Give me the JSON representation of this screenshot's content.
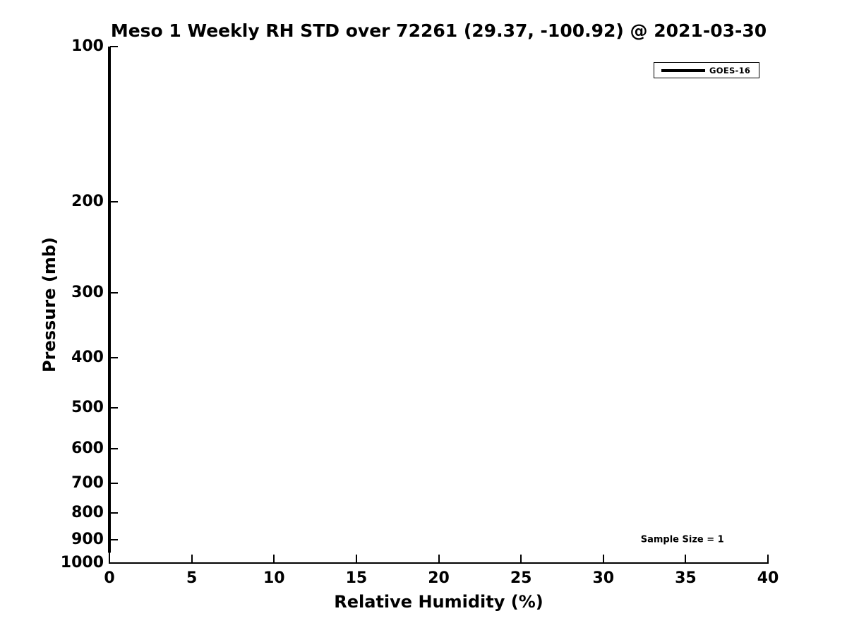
{
  "chart_data": {
    "type": "line",
    "title": "Meso 1 Weekly RH STD over 72261 (29.37, -100.92) @ 2021-03-30",
    "xlabel": "Relative Humidity (%)",
    "ylabel": "Pressure (mb)",
    "xlim": [
      0,
      40
    ],
    "ylim": [
      1000,
      100
    ],
    "yscale": "log",
    "xscale": "linear",
    "grid": false,
    "xticks": [
      0,
      5,
      10,
      15,
      20,
      25,
      30,
      35,
      40
    ],
    "yticks": [
      100,
      200,
      300,
      400,
      500,
      600,
      700,
      800,
      900,
      1000
    ],
    "legend": {
      "position": "upper right",
      "entries": [
        {
          "label": "GOES-16",
          "color": "#000000",
          "line_width": 4
        }
      ]
    },
    "series": [
      {
        "name": "GOES-16",
        "color": "#000000",
        "line_width": 4,
        "x": [
          0,
          0
        ],
        "y": [
          100,
          955
        ]
      }
    ],
    "annotations": [
      {
        "text": "Sample Size = 1",
        "x": 34.8,
        "y": 900
      }
    ],
    "colors": {
      "text": "#000000",
      "axis": "#000000",
      "background": "#ffffff"
    }
  }
}
